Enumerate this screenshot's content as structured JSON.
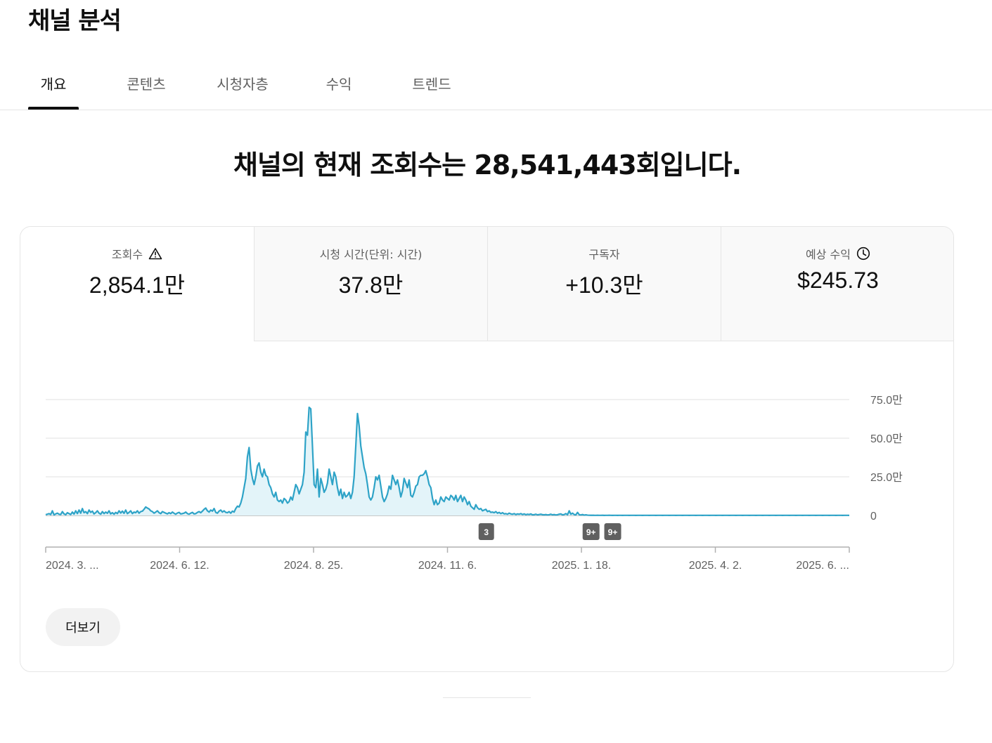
{
  "page_title": "채널 분석",
  "tabs": [
    {
      "label": "개요"
    },
    {
      "label": "콘텐츠"
    },
    {
      "label": "시청자층"
    },
    {
      "label": "수익"
    },
    {
      "label": "트렌드"
    }
  ],
  "headline": "채널의 현재 조회수는 28,541,443회입니다.",
  "metrics": [
    {
      "label": "조회수",
      "value": "2,854.1만",
      "icon": "warning-icon"
    },
    {
      "label": "시청 시간(단위: 시간)",
      "value": "37.8만"
    },
    {
      "label": "구독자",
      "value": "+10.3만"
    },
    {
      "label": "예상 수익",
      "value": "$245.73",
      "icon": "clock-icon"
    }
  ],
  "more_button": "더보기",
  "colors": {
    "line": "#2ea3c7",
    "fill": "#e3f4f9",
    "badge": "#606060"
  },
  "chart_data": {
    "type": "area",
    "y_ticks": [
      "75.0만",
      "50.0만",
      "25.0만",
      "0"
    ],
    "ylim": [
      0,
      750000
    ],
    "x_ticks": [
      "2024. 3. ...",
      "2024. 6. 12.",
      "2024. 8. 25.",
      "2024. 11. 6.",
      "2025. 1. 18.",
      "2025. 4. 2.",
      "2025. 6. ..."
    ],
    "x_start": "2024-03-26",
    "x_end": "2025-06-14",
    "series": [
      {
        "values": [
          5000,
          8000,
          12000,
          6000,
          30000,
          4000,
          10000,
          15000,
          8000,
          6000,
          25000,
          10000,
          5000,
          18000,
          12000,
          6000,
          22000,
          9000,
          30000,
          12000,
          35000,
          15000,
          45000,
          18000,
          25000,
          12000,
          35000,
          20000,
          28000,
          10000,
          18000,
          30000,
          15000,
          8000,
          25000,
          12000,
          22000,
          14000,
          30000,
          10000,
          18000,
          8000,
          20000,
          12000,
          30000,
          16000,
          28000,
          14000,
          35000,
          12000,
          20000,
          30000,
          12000,
          22000,
          18000,
          30000,
          15000,
          25000,
          28000,
          40000,
          55000,
          48000,
          42000,
          30000,
          25000,
          15000,
          22000,
          30000,
          18000,
          12000,
          25000,
          20000,
          15000,
          10000,
          18000,
          12000,
          22000,
          14000,
          8000,
          16000,
          20000,
          10000,
          12000,
          15000,
          22000,
          12000,
          8000,
          15000,
          20000,
          10000,
          12000,
          20000,
          25000,
          18000,
          28000,
          40000,
          48000,
          30000,
          22000,
          35000,
          28000,
          45000,
          20000,
          15000,
          28000,
          35000,
          22000,
          30000,
          20000,
          18000,
          25000,
          15000,
          28000,
          22000,
          45000,
          60000,
          55000,
          80000,
          120000,
          180000,
          240000,
          380000,
          440000,
          300000,
          240000,
          200000,
          250000,
          320000,
          340000,
          280000,
          250000,
          300000,
          260000,
          250000,
          200000,
          180000,
          140000,
          120000,
          150000,
          100000,
          90000,
          100000,
          80000,
          110000,
          100000,
          80000,
          90000,
          120000,
          100000,
          150000,
          200000,
          180000,
          140000,
          170000,
          200000,
          280000,
          540000,
          520000,
          700000,
          690000,
          450000,
          200000,
          180000,
          300000,
          120000,
          240000,
          200000,
          150000,
          170000,
          210000,
          300000,
          250000,
          200000,
          280000,
          250000,
          180000,
          130000,
          170000,
          110000,
          150000,
          120000,
          130000,
          150000,
          110000,
          150000,
          250000,
          450000,
          660000,
          580000,
          450000,
          380000,
          310000,
          270000,
          200000,
          120000,
          100000,
          120000,
          180000,
          250000,
          230000,
          260000,
          190000,
          120000,
          90000,
          110000,
          140000,
          190000,
          170000,
          260000,
          230000,
          200000,
          230000,
          180000,
          120000,
          160000,
          240000,
          210000,
          180000,
          230000,
          130000,
          120000,
          150000,
          190000,
          200000,
          250000,
          260000,
          260000,
          270000,
          290000,
          250000,
          200000,
          180000,
          110000,
          70000,
          100000,
          70000,
          80000,
          120000,
          100000,
          90000,
          120000,
          110000,
          100000,
          130000,
          120000,
          100000,
          130000,
          90000,
          110000,
          130000,
          90000,
          120000,
          100000,
          70000,
          90000,
          60000,
          50000,
          40000,
          70000,
          50000,
          40000,
          45000,
          30000,
          35000,
          40000,
          25000,
          30000,
          20000,
          22000,
          18000,
          25000,
          15000,
          20000,
          12000,
          18000,
          10000,
          12000,
          8000,
          15000,
          10000,
          8000,
          12000,
          6000,
          10000,
          8000,
          12000,
          6000,
          10000,
          5000,
          8000,
          6000,
          10000,
          4000,
          5000,
          8000,
          4000,
          6000,
          8000,
          5000,
          4000,
          6000,
          3000,
          5000,
          8000,
          4000,
          6000,
          3000,
          5000,
          8000,
          10000,
          4000,
          6000,
          12000,
          5000,
          30000,
          8000,
          15000,
          6000,
          4000,
          20000,
          5000,
          3000,
          6000,
          2000,
          4000,
          2000,
          1500,
          1000,
          1500,
          1000,
          800,
          1000,
          900,
          800,
          1000,
          700,
          900,
          800,
          1000,
          800,
          700,
          900,
          800,
          700,
          800,
          900,
          700,
          800,
          900,
          800,
          700,
          800,
          900,
          800,
          700,
          800,
          900,
          800,
          700,
          800,
          900,
          800,
          700,
          800,
          900,
          800,
          700,
          800,
          900,
          800,
          700,
          800,
          900,
          800,
          700,
          800,
          900,
          800,
          700,
          800,
          900,
          800,
          700,
          800,
          900,
          800,
          700,
          800,
          900,
          800,
          700,
          800,
          900,
          800,
          700,
          800,
          900,
          800,
          700,
          800,
          900,
          800,
          700,
          800,
          900,
          800,
          700,
          800,
          900,
          800,
          700,
          800,
          900,
          800,
          700,
          800,
          900,
          800,
          700,
          800,
          900,
          800,
          700,
          800,
          900,
          800,
          700,
          800,
          900,
          800,
          700,
          800,
          900,
          800,
          700,
          800,
          900,
          800,
          700,
          800,
          900,
          800,
          700,
          800,
          900,
          800,
          700,
          800,
          900,
          800,
          700,
          800,
          900,
          800,
          700,
          800,
          900,
          800,
          700,
          800,
          900,
          800,
          700,
          800,
          900,
          800,
          700,
          800,
          900,
          800,
          700,
          800,
          900,
          800,
          700,
          800,
          900,
          800,
          700,
          800,
          900,
          800,
          700
        ]
      }
    ],
    "annotations": [
      {
        "label": "3",
        "date": "2024-11-25"
      },
      {
        "label": "9+",
        "date": "2025-01-22"
      },
      {
        "label": "9+",
        "date": "2025-02-03"
      }
    ],
    "grid": true
  }
}
